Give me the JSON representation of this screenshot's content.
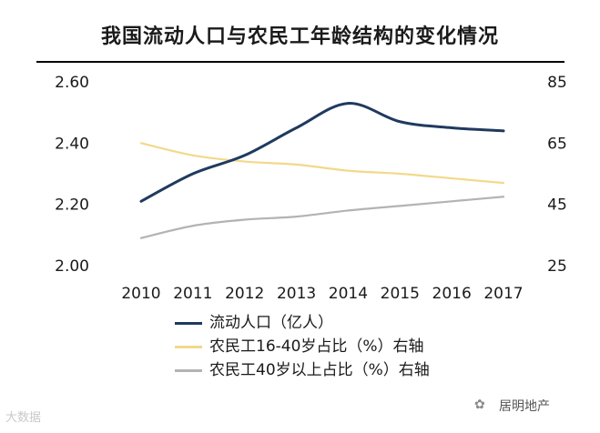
{
  "chart_data": {
    "type": "line",
    "title": "我国流动人口与农民工年龄结构的变化情况",
    "categories": [
      "2010",
      "2011",
      "2012",
      "2013",
      "2014",
      "2015",
      "2016",
      "2017"
    ],
    "y_left": {
      "ticks": [
        "2.60",
        "2.40",
        "2.20",
        "2.00"
      ],
      "range": [
        2.0,
        2.6
      ]
    },
    "y_right": {
      "ticks": [
        "85",
        "65",
        "45",
        "25"
      ],
      "range": [
        25,
        85
      ]
    },
    "series": [
      {
        "name": "流动人口（亿人）",
        "axis": "left",
        "color": "#1f3a5f",
        "values": [
          2.21,
          2.3,
          2.36,
          2.45,
          2.53,
          2.47,
          2.45,
          2.44
        ]
      },
      {
        "name": "农民工16-40岁占比（%）右轴",
        "axis": "right",
        "color": "#f2d98a",
        "values": [
          65,
          61,
          59,
          58,
          56,
          55,
          53.5,
          52
        ]
      },
      {
        "name": "农民工40岁以上占比（%）右轴",
        "axis": "right",
        "color": "#b3b3b3",
        "values": [
          34,
          38,
          40,
          41,
          43,
          44.5,
          46,
          47.5
        ]
      }
    ]
  },
  "watermark": {
    "left_text": "大数据",
    "right_text": "居明地产",
    "icon": "wechat-icon"
  }
}
